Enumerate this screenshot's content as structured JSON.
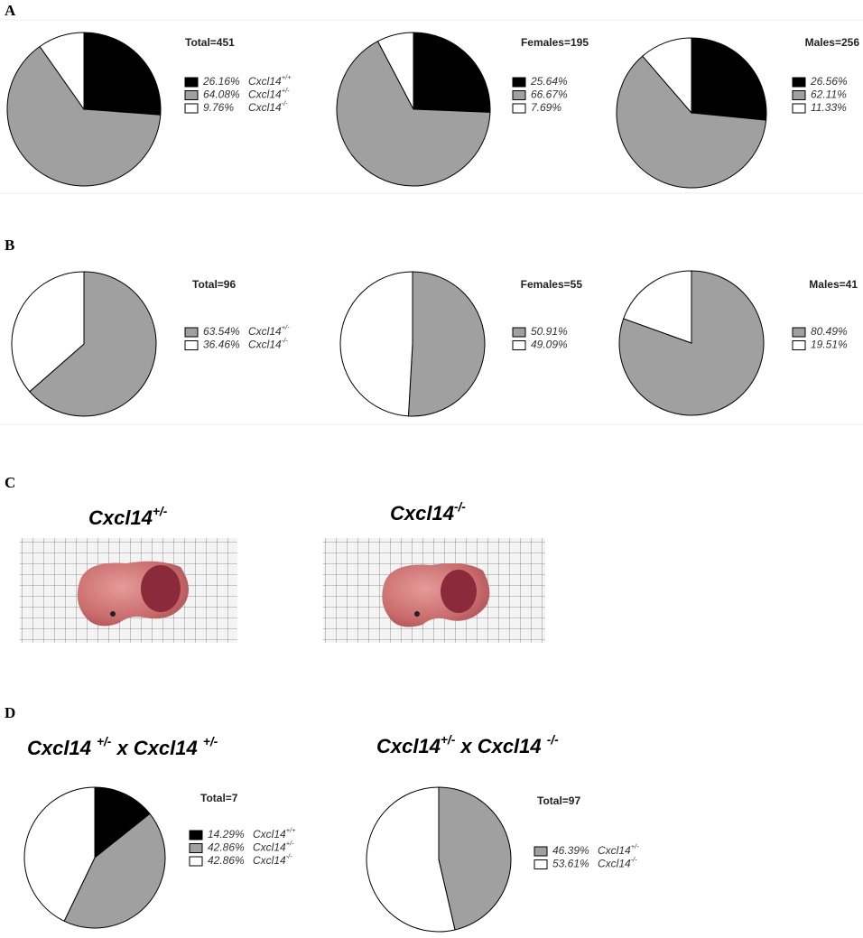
{
  "figure": {
    "panels": [
      "A",
      "B",
      "C",
      "D"
    ],
    "photo_labels": [
      "Cxcl14+/-",
      "Cxcl14-/-"
    ],
    "cross_labels": [
      "Cxcl14 +/- x Cxcl14 +/-",
      "Cxcl14+/- x Cxcl14 -/-"
    ]
  },
  "chart_data": [
    {
      "type": "pie",
      "title": "Total=451",
      "categories": [
        "Cxcl14+/+",
        "Cxcl14+/-",
        "Cxcl14-/-"
      ],
      "values": [
        26.16,
        64.08,
        9.76
      ],
      "value_labels": [
        "26.16%",
        "64.08%",
        "9.76%"
      ],
      "colors": [
        "#000000",
        "#a0a0a0",
        "#ffffff"
      ]
    },
    {
      "type": "pie",
      "title": "Females=195",
      "categories": [
        null,
        null,
        null
      ],
      "values": [
        25.64,
        66.67,
        7.69
      ],
      "value_labels": [
        "25.64%",
        "66.67%",
        "7.69%"
      ],
      "colors": [
        "#000000",
        "#a0a0a0",
        "#ffffff"
      ]
    },
    {
      "type": "pie",
      "title": "Males=256",
      "categories": [
        null,
        null,
        null
      ],
      "values": [
        26.56,
        62.11,
        11.33
      ],
      "value_labels": [
        "26.56%",
        "62.11%",
        "11.33%"
      ],
      "colors": [
        "#000000",
        "#a0a0a0",
        "#ffffff"
      ]
    },
    {
      "type": "pie",
      "title": "Total=96",
      "categories": [
        "Cxcl14+/-",
        "Cxcl14-/-"
      ],
      "values": [
        63.54,
        36.46
      ],
      "value_labels": [
        "63.54%",
        "36.46%"
      ],
      "colors": [
        "#a0a0a0",
        "#ffffff"
      ]
    },
    {
      "type": "pie",
      "title": "Females=55",
      "categories": [
        null,
        null
      ],
      "values": [
        50.91,
        49.09
      ],
      "value_labels": [
        "50.91%",
        "49.09%"
      ],
      "colors": [
        "#a0a0a0",
        "#ffffff"
      ]
    },
    {
      "type": "pie",
      "title": "Males=41",
      "categories": [
        null,
        null
      ],
      "values": [
        80.49,
        19.51
      ],
      "value_labels": [
        "80.49%",
        "19.51%"
      ],
      "colors": [
        "#a0a0a0",
        "#ffffff"
      ]
    },
    {
      "type": "pie",
      "title": "Total=7",
      "categories": [
        "Cxcl14+/+",
        "Cxcl14+/-",
        "Cxcl14-/-"
      ],
      "values": [
        14.29,
        42.86,
        42.86
      ],
      "value_labels": [
        "14.29%",
        "42.86%",
        "42.86%"
      ],
      "colors": [
        "#000000",
        "#a0a0a0",
        "#ffffff"
      ]
    },
    {
      "type": "pie",
      "title": "Total=97",
      "categories": [
        "Cxcl14+/-",
        "Cxcl14-/-"
      ],
      "values": [
        46.39,
        53.61
      ],
      "value_labels": [
        "46.39%",
        "53.61%"
      ],
      "colors": [
        "#a0a0a0",
        "#ffffff"
      ]
    }
  ]
}
